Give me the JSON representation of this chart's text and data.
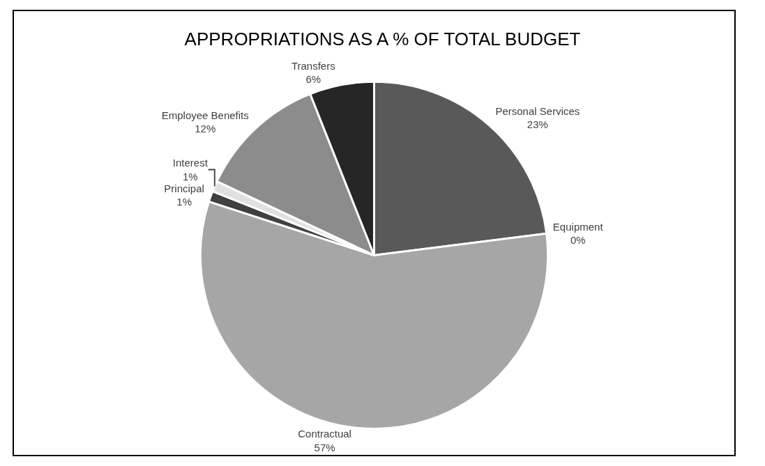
{
  "chart_data": {
    "type": "pie",
    "title": "APPROPRIATIONS AS A % OF TOTAL BUDGET",
    "categories": [
      "Personal Services",
      "Equipment",
      "Contractual",
      "Principal",
      "Interest",
      "Employee Benefits",
      "Transfers"
    ],
    "values": [
      23,
      0,
      57,
      1,
      1,
      12,
      6
    ],
    "colors": [
      "#595959",
      "#d9d9d9",
      "#a6a6a6",
      "#404040",
      "#e0e0e0",
      "#8c8c8c",
      "#262626"
    ],
    "value_labels": [
      "23%",
      "0%",
      "57%",
      "1%",
      "1%",
      "12%",
      "6%"
    ],
    "legend": false
  }
}
